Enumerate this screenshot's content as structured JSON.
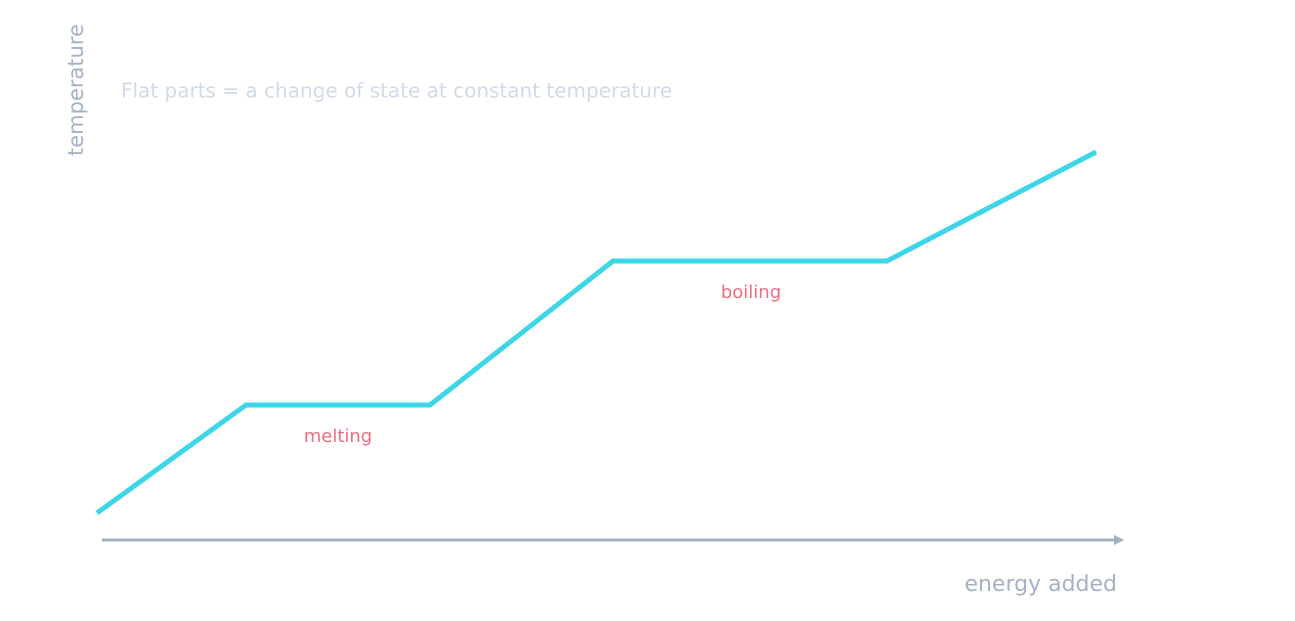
{
  "axes": {
    "y_label": "temperature",
    "x_label": "energy added"
  },
  "note": "Flat parts = a change of state at constant temperature",
  "phases": [
    {
      "label": "melting"
    },
    {
      "label": "boiling"
    }
  ]
}
